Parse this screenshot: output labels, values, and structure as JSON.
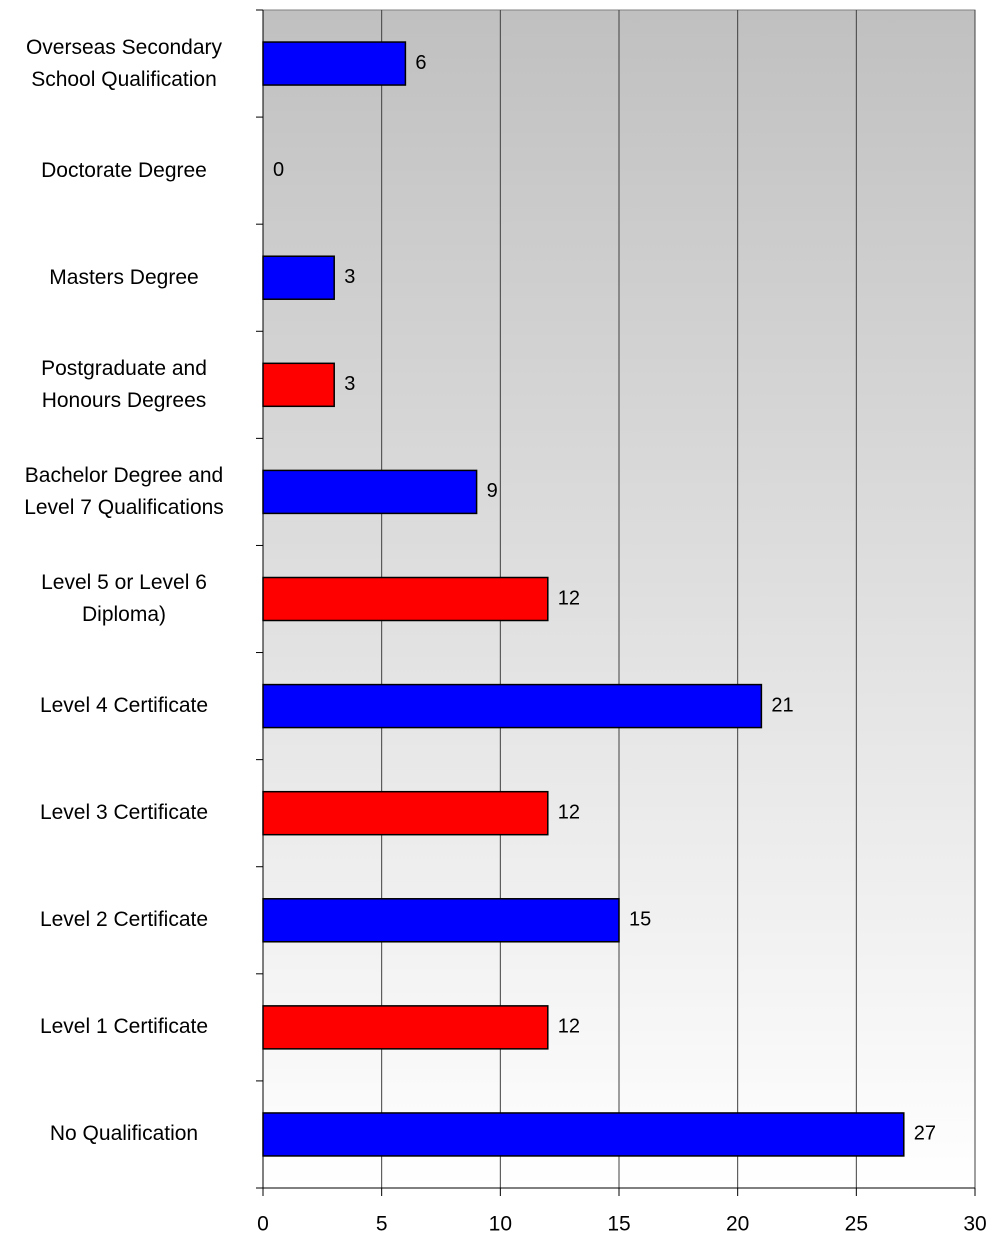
{
  "chart_data": {
    "type": "bar",
    "orientation": "horizontal",
    "categories": [
      "Overseas Secondary School Qualification",
      "Doctorate Degree",
      "Masters Degree",
      "Postgraduate and Honours Degrees",
      "Bachelor Degree and Level 7 Qualifications",
      "Level 5 or Level 6 Diploma)",
      "Level 4 Certificate",
      "Level 3 Certificate",
      "Level 2 Certificate",
      "Level 1 Certificate",
      "No Qualification"
    ],
    "values": [
      6,
      0,
      3,
      3,
      9,
      12,
      21,
      12,
      15,
      12,
      27
    ],
    "colors": [
      "#0000ff",
      "#ff0000",
      "#0000ff",
      "#ff0000",
      "#0000ff",
      "#ff0000",
      "#0000ff",
      "#ff0000",
      "#0000ff",
      "#ff0000",
      "#0000ff"
    ],
    "xlim": [
      0,
      30
    ],
    "xticks": [
      0,
      5,
      10,
      15,
      20,
      25,
      30
    ],
    "grid": true
  }
}
